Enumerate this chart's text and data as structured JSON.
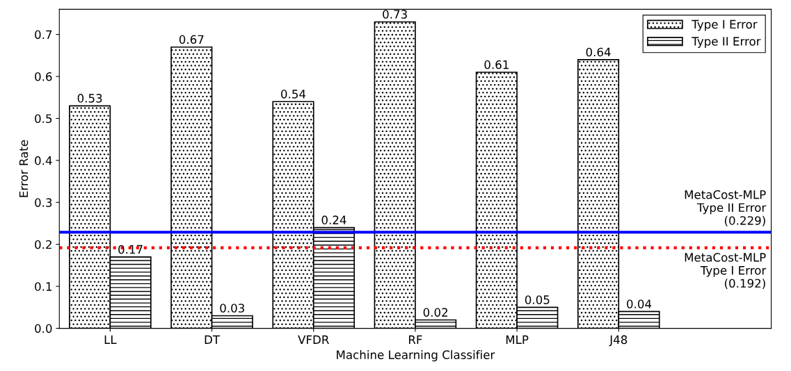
{
  "chart_data": {
    "type": "bar",
    "xlabel": "Machine Learning Classifier",
    "ylabel": "Error Rate",
    "categories": [
      "LL",
      "DT",
      "VFDR",
      "RF",
      "MLP",
      "J48"
    ],
    "series": [
      {
        "name": "Type I Error",
        "color": "#000000",
        "values": [
          0.53,
          0.67,
          0.54,
          0.73,
          0.61,
          0.64
        ]
      },
      {
        "name": "Type II Error",
        "color": "#000000",
        "values": [
          0.17,
          0.03,
          0.24,
          0.02,
          0.05,
          0.04
        ]
      }
    ],
    "ylim": [
      0,
      0.76
    ],
    "yticks": [
      {
        "value": 0,
        "label": "0.0"
      },
      0.1,
      0.2,
      0.3,
      0.4,
      0.5,
      0.6,
      0.7
    ],
    "data_labels": true,
    "legend": "top right",
    "grid": false,
    "ref_lines": [
      {
        "axis": "y",
        "value": 0.229,
        "label": "MetaCost-MLP\nType II Error\n(0.229)",
        "color": "#0000ff",
        "line_style": "solid"
      },
      {
        "axis": "y",
        "value": 0.192,
        "label": "MetaCost-MLP\nType I Error\n(0.192)",
        "color": "#ff0000",
        "line_style": "dotted"
      }
    ]
  }
}
